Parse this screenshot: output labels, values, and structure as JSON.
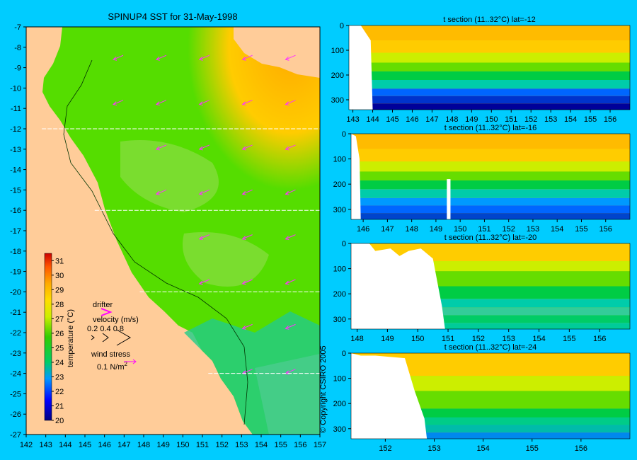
{
  "map": {
    "title": "SPINUP4 SST for 31-May-1998",
    "x_ticks": [
      142,
      143,
      144,
      145,
      146,
      147,
      148,
      149,
      150,
      151,
      152,
      153,
      154,
      155,
      156,
      157
    ],
    "y_ticks": [
      -7,
      -8,
      -9,
      -10,
      -11,
      -12,
      -13,
      -14,
      -15,
      -16,
      -17,
      -18,
      -19,
      -20,
      -21,
      -22,
      -23,
      -24,
      -25,
      -26,
      -27
    ],
    "xlim": [
      142,
      157
    ],
    "ylim": [
      -27,
      -7
    ],
    "section_lats": [
      -12,
      -16,
      -20,
      -24
    ],
    "colorbar": {
      "label": "temperature (°C)",
      "ticks": [
        20,
        21,
        22,
        23,
        24,
        25,
        26,
        27,
        28,
        29,
        30,
        31
      ],
      "range": [
        20,
        31.5
      ]
    },
    "legend": {
      "drifter": "drifter",
      "velocity": "velocity (m/s)",
      "velocity_values": "0.2 0.4 0.8",
      "wind": "wind stress",
      "wind_unit": "0.1 N/m",
      "wind_unit_sup": "2"
    },
    "copyright": "© Copyright CSIRO 2005"
  },
  "chart_data": [
    {
      "type": "heatmap",
      "title": "t section (11..32°C) lat=-12",
      "x_ticks": [
        143,
        144,
        145,
        146,
        147,
        148,
        149,
        150,
        151,
        152,
        153,
        154,
        155,
        156
      ],
      "xlim": [
        142.8,
        157
      ],
      "y_ticks": [
        0,
        100,
        200,
        300
      ],
      "ylim": [
        0,
        340
      ],
      "y_reversed": true
    },
    {
      "type": "heatmap",
      "title": "t section (11..32°C) lat=-16",
      "x_ticks": [
        146,
        147,
        148,
        149,
        150,
        151,
        152,
        153,
        154,
        155,
        156
      ],
      "xlim": [
        145.5,
        157
      ],
      "y_ticks": [
        0,
        100,
        200,
        300
      ],
      "ylim": [
        0,
        340
      ],
      "y_reversed": true
    },
    {
      "type": "heatmap",
      "title": "t section (11..32°C) lat=-20",
      "x_ticks": [
        148,
        149,
        150,
        151,
        152,
        153,
        154,
        155,
        156
      ],
      "xlim": [
        147.8,
        157
      ],
      "y_ticks": [
        0,
        100,
        200,
        300
      ],
      "ylim": [
        0,
        340
      ],
      "y_reversed": true
    },
    {
      "type": "heatmap",
      "title": "t section (11..32°C) lat=-24",
      "x_ticks": [
        152,
        153,
        154,
        155,
        156
      ],
      "xlim": [
        151.3,
        157
      ],
      "y_ticks": [
        0,
        100,
        200,
        300
      ],
      "ylim": [
        0,
        340
      ],
      "y_reversed": true
    }
  ]
}
